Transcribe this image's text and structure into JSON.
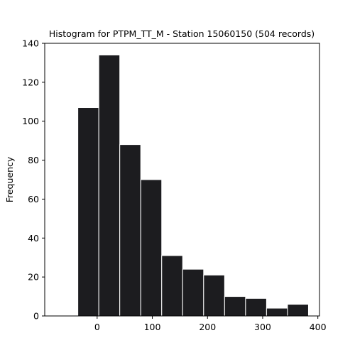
{
  "chart_data": {
    "type": "bar",
    "title": "Histogram for PTPM_TT_M - Station 15060150 (504 records)",
    "xlabel": "",
    "ylabel": "Frequency",
    "xlim": [
      -95,
      403
    ],
    "ylim": [
      0,
      140
    ],
    "xticks": [
      0,
      100,
      200,
      300,
      400
    ],
    "yticks": [
      0,
      20,
      40,
      60,
      80,
      100,
      120,
      140
    ],
    "grid": false,
    "bins": [
      {
        "x0": -35,
        "x1": 3,
        "count": 107
      },
      {
        "x0": 3,
        "x1": 41,
        "count": 134
      },
      {
        "x0": 41,
        "x1": 79,
        "count": 88
      },
      {
        "x0": 79,
        "x1": 117,
        "count": 70
      },
      {
        "x0": 117,
        "x1": 155,
        "count": 31
      },
      {
        "x0": 155,
        "x1": 193,
        "count": 24
      },
      {
        "x0": 193,
        "x1": 231,
        "count": 21
      },
      {
        "x0": 231,
        "x1": 269,
        "count": 10
      },
      {
        "x0": 269,
        "x1": 307,
        "count": 9
      },
      {
        "x0": 307,
        "x1": 345,
        "count": 4
      },
      {
        "x0": 345,
        "x1": 383,
        "count": 6
      }
    ],
    "colors": {
      "bar": "#1c1c1f",
      "edge": "#ffffff"
    }
  }
}
